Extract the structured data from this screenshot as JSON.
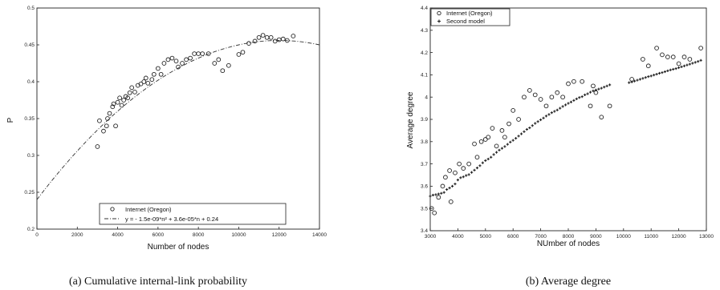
{
  "chart_data": [
    {
      "type": "scatter",
      "caption": "(a) Cumulative internal-link probability",
      "xlabel": "Number of nodes",
      "ylabel": "P",
      "xlim": [
        0,
        14000
      ],
      "ylim": [
        0.2,
        0.5
      ],
      "xticks": [
        "0",
        "2000",
        "4000",
        "6000",
        "8000",
        "10000",
        "12000",
        "14000"
      ],
      "yticks": [
        "0.2",
        "0.25",
        "0.3",
        "0.35",
        "0.4",
        "0.45",
        "0.5"
      ],
      "legend": [
        "Internet (Oregon)",
        "y = - 1.5e-09*n² + 3.6e-05*n + 0.24"
      ],
      "legend_position": "bottom-right",
      "series": [
        {
          "name": "Internet (Oregon)",
          "marker": "circle",
          "x": [
            3000,
            3100,
            3300,
            3450,
            3500,
            3600,
            3750,
            3800,
            3900,
            4000,
            4100,
            4200,
            4300,
            4400,
            4500,
            4600,
            4700,
            4850,
            5000,
            5150,
            5300,
            5400,
            5500,
            5700,
            5800,
            6000,
            6150,
            6300,
            6500,
            6700,
            6900,
            7000,
            7200,
            7400,
            7600,
            7800,
            8000,
            8200,
            8500,
            8800,
            9000,
            9200,
            9500,
            10000,
            10200,
            10500,
            10800,
            11000,
            11200,
            11400,
            11600,
            11800,
            12000,
            12200,
            12400,
            12700
          ],
          "y": [
            0.312,
            0.347,
            0.333,
            0.34,
            0.35,
            0.357,
            0.366,
            0.37,
            0.34,
            0.372,
            0.378,
            0.368,
            0.375,
            0.38,
            0.378,
            0.385,
            0.392,
            0.386,
            0.395,
            0.397,
            0.4,
            0.405,
            0.398,
            0.403,
            0.41,
            0.418,
            0.41,
            0.425,
            0.43,
            0.432,
            0.428,
            0.42,
            0.425,
            0.43,
            0.432,
            0.438,
            0.438,
            0.438,
            0.438,
            0.425,
            0.43,
            0.415,
            0.422,
            0.437,
            0.44,
            0.452,
            0.455,
            0.46,
            0.463,
            0.46,
            0.46,
            0.455,
            0.457,
            0.458,
            0.456,
            0.462
          ]
        },
        {
          "name": "y = - 1.5e-09*n² + 3.6e-05*n + 0.24",
          "marker": "dash-dot line",
          "formula": {
            "a": -1.5e-09,
            "b": 3.6e-05,
            "c": 0.24
          },
          "x_range": [
            0,
            14000
          ]
        }
      ]
    },
    {
      "type": "scatter",
      "caption": "(b) Average degree",
      "xlabel": "NUmber of nodes",
      "ylabel": "Average degree",
      "xlim": [
        3000,
        13000
      ],
      "ylim": [
        3.4,
        4.4
      ],
      "xticks": [
        "3000",
        "4000",
        "5000",
        "6000",
        "7000",
        "8000",
        "9000",
        "10000",
        "11000",
        "12000",
        "13000"
      ],
      "yticks": [
        "3.4",
        "3.5",
        "3.6",
        "3.7",
        "3.8",
        "3.9",
        "4",
        "4.1",
        "4.2",
        "4.3",
        "4.4"
      ],
      "legend": [
        "Internet (Oregon)",
        "Second model"
      ],
      "legend_position": "top-left",
      "series": [
        {
          "name": "Internet (Oregon)",
          "marker": "circle",
          "x": [
            3050,
            3150,
            3300,
            3450,
            3550,
            3700,
            3750,
            3900,
            4050,
            4200,
            4400,
            4600,
            4700,
            4850,
            5000,
            5100,
            5250,
            5400,
            5600,
            5700,
            5850,
            6000,
            6200,
            6400,
            6600,
            6800,
            7000,
            7200,
            7400,
            7600,
            7800,
            8000,
            8200,
            8500,
            8800,
            8900,
            9000,
            9200,
            9500,
            10300,
            10700,
            10900,
            11200,
            11400,
            11600,
            11800,
            12000,
            12200,
            12400,
            12800
          ],
          "y": [
            3.5,
            3.48,
            3.55,
            3.6,
            3.64,
            3.67,
            3.53,
            3.66,
            3.7,
            3.68,
            3.7,
            3.79,
            3.73,
            3.8,
            3.81,
            3.82,
            3.86,
            3.78,
            3.85,
            3.82,
            3.88,
            3.94,
            3.9,
            4.0,
            4.03,
            4.01,
            3.99,
            3.96,
            4.0,
            4.02,
            4.0,
            4.06,
            4.07,
            4.07,
            3.96,
            4.05,
            4.02,
            3.91,
            3.96,
            4.08,
            4.17,
            4.14,
            4.22,
            4.19,
            4.18,
            4.18,
            4.15,
            4.18,
            4.17,
            4.22
          ]
        },
        {
          "name": "Second model",
          "marker": "cross",
          "x": [
            3000,
            3100,
            3200,
            3300,
            3400,
            3500,
            3600,
            3700,
            3800,
            3900,
            4000,
            4100,
            4200,
            4300,
            4400,
            4500,
            4600,
            4700,
            4800,
            4900,
            5000,
            5100,
            5200,
            5300,
            5400,
            5500,
            5600,
            5700,
            5800,
            5900,
            6000,
            6100,
            6200,
            6300,
            6400,
            6500,
            6600,
            6700,
            6800,
            6900,
            7000,
            7100,
            7200,
            7300,
            7400,
            7500,
            7600,
            7700,
            7800,
            7900,
            8000,
            8100,
            8200,
            8300,
            8400,
            8500,
            8600,
            8700,
            8800,
            8900,
            9000,
            9100,
            9200,
            9300,
            9400,
            9500,
            10200,
            10300,
            10400,
            10500,
            10600,
            10700,
            10800,
            10900,
            11000,
            11100,
            11200,
            11300,
            11400,
            11500,
            11600,
            11700,
            11800,
            11900,
            12000,
            12100,
            12200,
            12300,
            12400,
            12500,
            12600,
            12700,
            12800
          ],
          "y": [
            3.555,
            3.56,
            3.562,
            3.565,
            3.568,
            3.572,
            3.585,
            3.592,
            3.6,
            3.61,
            3.628,
            3.638,
            3.642,
            3.648,
            3.652,
            3.662,
            3.672,
            3.682,
            3.692,
            3.705,
            3.715,
            3.722,
            3.73,
            3.742,
            3.752,
            3.762,
            3.77,
            3.778,
            3.788,
            3.798,
            3.806,
            3.815,
            3.825,
            3.835,
            3.845,
            3.855,
            3.862,
            3.872,
            3.882,
            3.89,
            3.898,
            3.906,
            3.915,
            3.922,
            3.93,
            3.936,
            3.942,
            3.95,
            3.958,
            3.965,
            3.972,
            3.978,
            3.985,
            3.992,
            3.998,
            4.002,
            4.01,
            4.015,
            4.022,
            4.028,
            4.032,
            4.036,
            4.04,
            4.045,
            4.05,
            4.055,
            4.065,
            4.068,
            4.072,
            4.076,
            4.08,
            4.084,
            4.088,
            4.092,
            4.095,
            4.099,
            4.103,
            4.107,
            4.11,
            4.114,
            4.118,
            4.122,
            4.125,
            4.128,
            4.132,
            4.136,
            4.14,
            4.144,
            4.148,
            4.152,
            4.156,
            4.16,
            4.165
          ]
        }
      ]
    }
  ]
}
